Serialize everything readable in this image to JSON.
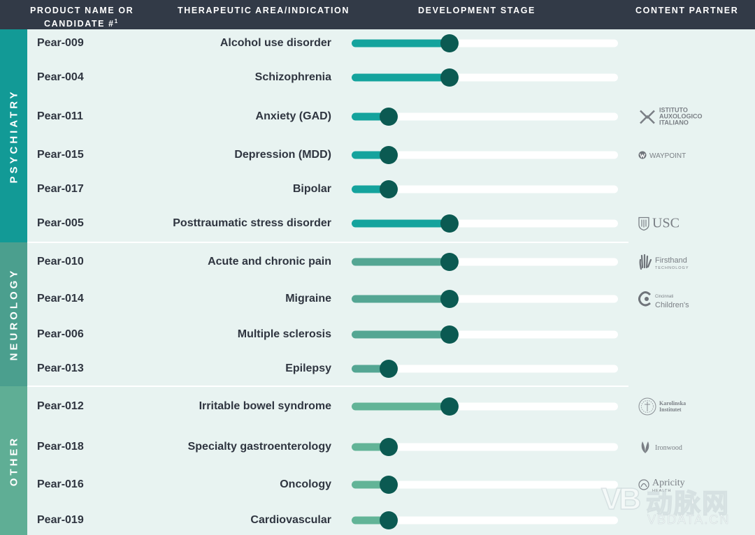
{
  "header": {
    "product_line1": "PRODUCT NAME OR",
    "product_line2": "CANDIDATE #",
    "product_sup": "1",
    "area": "THERAPEUTIC AREA/INDICATION",
    "stage": "DEVELOPMENT STAGE",
    "partner": "CONTENT PARTNER"
  },
  "groups": [
    {
      "label": "PSYCHIATRY",
      "color": "#129a96"
    },
    {
      "label": "NEUROLOGY",
      "color": "#4b9f8e"
    },
    {
      "label": "OTHER",
      "color": "#5fae95"
    }
  ],
  "colors": {
    "psychiatry_fill": "#14a39d",
    "neurology_fill": "#54a693",
    "other_fill": "#62b497",
    "knob": "#0b5a52",
    "track": "#ffffff",
    "header_bg": "#323a47"
  },
  "chart_data": {
    "type": "bar",
    "title": "DEVELOPMENT STAGE",
    "xlim": [
      0,
      1
    ],
    "note": "Stage shown as fraction of the full development track",
    "rows": [
      {
        "group": "PSYCHIATRY",
        "name": "Pear-009",
        "area": "Alcohol use disorder",
        "stage": 0.367
      },
      {
        "group": "PSYCHIATRY",
        "name": "Pear-004",
        "area": "Schizophrenia",
        "stage": 0.367
      },
      {
        "group": "PSYCHIATRY",
        "name": "Pear-011",
        "area": "Anxiety (GAD)",
        "stage": 0.139
      },
      {
        "group": "PSYCHIATRY",
        "name": "Pear-015",
        "area": "Depression (MDD)",
        "stage": 0.139
      },
      {
        "group": "PSYCHIATRY",
        "name": "Pear-017",
        "area": "Bipolar",
        "stage": 0.139
      },
      {
        "group": "PSYCHIATRY",
        "name": "Pear-005",
        "area": "Posttraumatic stress disorder",
        "stage": 0.367
      },
      {
        "group": "NEUROLOGY",
        "name": "Pear-010",
        "area": "Acute and chronic pain",
        "stage": 0.367
      },
      {
        "group": "NEUROLOGY",
        "name": "Pear-014",
        "area": "Migraine",
        "stage": 0.367
      },
      {
        "group": "NEUROLOGY",
        "name": "Pear-006",
        "area": "Multiple sclerosis",
        "stage": 0.367
      },
      {
        "group": "NEUROLOGY",
        "name": "Pear-013",
        "area": "Epilepsy",
        "stage": 0.139
      },
      {
        "group": "OTHER",
        "name": "Pear-012",
        "area": "Irritable bowel syndrome",
        "stage": 0.367
      },
      {
        "group": "OTHER",
        "name": "Pear-018",
        "area": "Specialty gastroenterology",
        "stage": 0.139
      },
      {
        "group": "OTHER",
        "name": "Pear-016",
        "area": "Oncology",
        "stage": 0.139
      },
      {
        "group": "OTHER",
        "name": "Pear-019",
        "area": "Cardiovascular",
        "stage": 0.139
      }
    ]
  },
  "partners": [
    {
      "row": 2,
      "name": "ISTITUTO AUXOLOGICO ITALIANO",
      "icon": "auxologico-logo-icon"
    },
    {
      "row": 3,
      "name": "WAYPOINT",
      "icon": "waypoint-logo-icon"
    },
    {
      "row": 5,
      "name": "USC",
      "icon": "usc-shield-icon"
    },
    {
      "row": 6,
      "name": "Firsthand",
      "sub": "TECHNOLOGY",
      "icon": "hand-icon"
    },
    {
      "row": 7,
      "name": "Cincinnati",
      "sub": "Children's",
      "icon": "cincinnati-logo-icon"
    },
    {
      "row": 10,
      "name": "Karolinska Institutet",
      "icon": "karolinska-seal-icon"
    },
    {
      "row": 11,
      "name": "Ironwood",
      "icon": "leaf-icon"
    },
    {
      "row": 12,
      "name": "Apricity",
      "sub": "HEALTH",
      "icon": "apricity-logo-icon"
    }
  ],
  "watermark": {
    "mark": "VB",
    "cn": "动脉网",
    "url": "VBDATA.CN"
  }
}
